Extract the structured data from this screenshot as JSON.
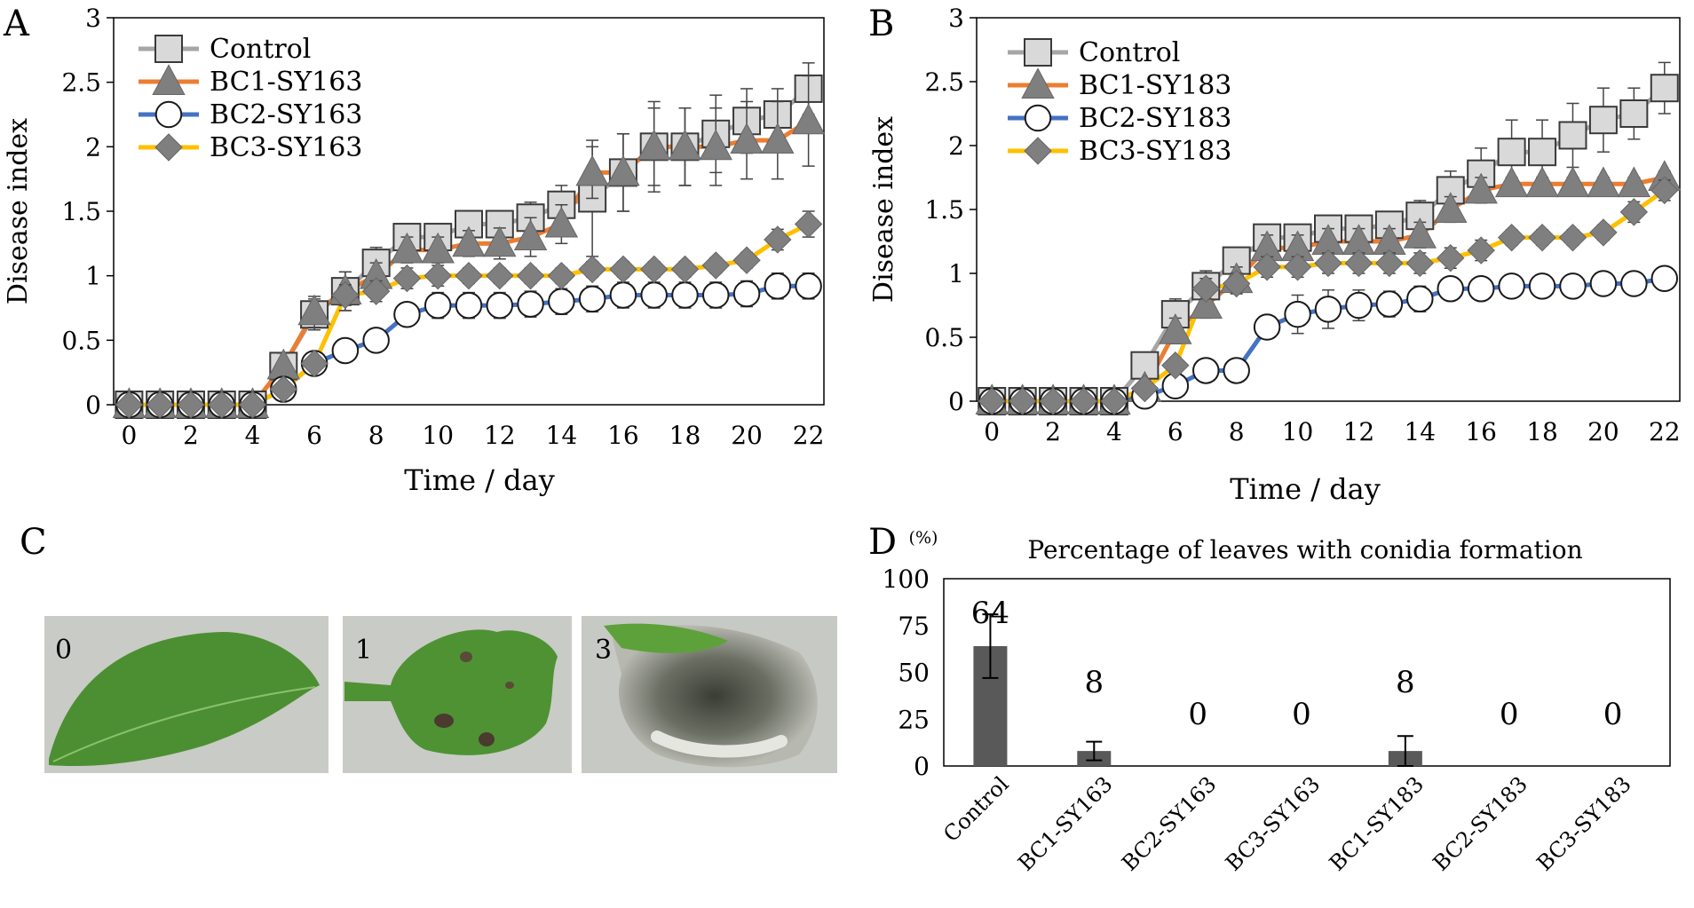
{
  "colors": {
    "control": "#a6a6a6",
    "bc1": "#ed7d31",
    "bc2": "#4472c4",
    "bc3": "#ffc000",
    "marker_fill": "#7f7f7f",
    "square_fill": "#d9d9d9",
    "bar_fill": "#595959",
    "leaf_bg": "#c7c9c4"
  },
  "chart_data": [
    {
      "panel": "A",
      "type": "line",
      "title": "",
      "xlabel": "Time / day",
      "ylabel": "Disease index",
      "xlim": [
        -0.5,
        22.5
      ],
      "ylim": [
        0,
        3
      ],
      "xticks": [
        0,
        2,
        4,
        6,
        8,
        10,
        12,
        14,
        16,
        18,
        20,
        22
      ],
      "xtick_labels": [
        "0",
        "2",
        "4",
        "6",
        "8",
        "10",
        "12",
        "14",
        "16",
        "18",
        "20",
        "22"
      ],
      "yticks": [
        0,
        0.5,
        1,
        1.5,
        2,
        2.5,
        3
      ],
      "ytick_labels": [
        "0",
        "0.5",
        "1",
        "1.5",
        "2",
        "2.5",
        "3"
      ],
      "legend_position": "top-left",
      "x": [
        0,
        1,
        2,
        3,
        4,
        5,
        6,
        7,
        8,
        9,
        10,
        11,
        12,
        13,
        14,
        15,
        16,
        17,
        18,
        19,
        20,
        21,
        22
      ],
      "series": [
        {
          "name": "Control",
          "key": "control",
          "marker": "square",
          "values": [
            0,
            0,
            0,
            0,
            0,
            0.3,
            0.7,
            0.88,
            1.1,
            1.3,
            1.3,
            1.4,
            1.4,
            1.45,
            1.55,
            1.6,
            1.8,
            2.0,
            2.0,
            2.1,
            2.2,
            2.25,
            2.45
          ],
          "errors": [
            0,
            0,
            0,
            0,
            0,
            0.1,
            0.12,
            0.15,
            0.12,
            0.08,
            0.08,
            0.1,
            0.1,
            0.12,
            0.15,
            0.45,
            0.3,
            0.35,
            0.3,
            0.3,
            0.25,
            0.2,
            0.2
          ]
        },
        {
          "name": "BC1-SY163",
          "key": "bc1",
          "marker": "triangle",
          "values": [
            0,
            0,
            0,
            0,
            0,
            0.3,
            0.72,
            0.88,
            1.0,
            1.2,
            1.2,
            1.25,
            1.25,
            1.3,
            1.4,
            1.8,
            1.8,
            2.0,
            2.0,
            2.0,
            2.05,
            2.05,
            2.2
          ],
          "errors": [
            0,
            0,
            0,
            0,
            0,
            0.1,
            0.12,
            0.15,
            0.1,
            0.1,
            0.1,
            0.1,
            0.12,
            0.15,
            0.15,
            0.2,
            0.3,
            0.3,
            0.3,
            0.3,
            0.3,
            0.3,
            0.35
          ]
        },
        {
          "name": "BC2-SY163",
          "key": "bc2",
          "marker": "circle",
          "values": [
            0,
            0,
            0,
            0,
            0,
            0.12,
            0.32,
            0.42,
            0.5,
            0.7,
            0.77,
            0.77,
            0.77,
            0.78,
            0.8,
            0.82,
            0.85,
            0.85,
            0.85,
            0.85,
            0.86,
            0.92,
            0.92
          ],
          "errors": [
            0,
            0,
            0,
            0,
            0,
            0.05,
            0.05,
            0.06,
            0.07,
            0.08,
            0.1,
            0.1,
            0.1,
            0.1,
            0.1,
            0.1,
            0.1,
            0.1,
            0.1,
            0.1,
            0.1,
            0.1,
            0.1
          ]
        },
        {
          "name": "BC3-SY163",
          "key": "bc3",
          "marker": "diamond",
          "values": [
            0,
            0,
            0,
            0,
            0,
            0.12,
            0.32,
            0.85,
            0.88,
            0.98,
            1.0,
            1.0,
            1.0,
            1.0,
            1.0,
            1.05,
            1.05,
            1.05,
            1.05,
            1.08,
            1.12,
            1.28,
            1.4
          ],
          "errors": [
            0,
            0,
            0,
            0,
            0,
            0.05,
            0.05,
            0.08,
            0.08,
            0.08,
            0.08,
            0.06,
            0.06,
            0.06,
            0.06,
            0.06,
            0.06,
            0.06,
            0.06,
            0.06,
            0.06,
            0.08,
            0.1
          ]
        }
      ]
    },
    {
      "panel": "B",
      "type": "line",
      "title": "",
      "xlabel": "Time / day",
      "ylabel": "Disease index",
      "xlim": [
        -0.5,
        22.5
      ],
      "ylim": [
        0,
        3
      ],
      "xticks": [
        0,
        2,
        4,
        6,
        8,
        10,
        12,
        14,
        16,
        18,
        20,
        22
      ],
      "xtick_labels": [
        "0",
        "2",
        "4",
        "6",
        "8",
        "10",
        "12",
        "14",
        "16",
        "18",
        "20",
        "22"
      ],
      "yticks": [
        0,
        0.5,
        1,
        1.5,
        2,
        2.5,
        3
      ],
      "ytick_labels": [
        "0",
        "0.5",
        "1",
        "1.5",
        "2",
        "2.5",
        "3"
      ],
      "legend_position": "top-left",
      "x": [
        0,
        1,
        2,
        3,
        4,
        5,
        6,
        7,
        8,
        9,
        10,
        11,
        12,
        13,
        14,
        15,
        16,
        17,
        18,
        19,
        20,
        21,
        22
      ],
      "series": [
        {
          "name": "Control",
          "key": "control",
          "marker": "square",
          "values": [
            0,
            0,
            0,
            0,
            0,
            0.28,
            0.68,
            0.9,
            1.1,
            1.28,
            1.28,
            1.35,
            1.35,
            1.38,
            1.45,
            1.65,
            1.78,
            1.95,
            1.95,
            2.08,
            2.2,
            2.25,
            2.45
          ],
          "errors": [
            0,
            0,
            0,
            0,
            0,
            0.1,
            0.12,
            0.12,
            0.1,
            0.08,
            0.1,
            0.1,
            0.1,
            0.1,
            0.12,
            0.15,
            0.2,
            0.25,
            0.25,
            0.25,
            0.25,
            0.2,
            0.2
          ]
        },
        {
          "name": "BC1-SY183",
          "key": "bc1",
          "marker": "triangle",
          "values": [
            0,
            0,
            0,
            0,
            0,
            0.1,
            0.55,
            0.75,
            0.95,
            1.2,
            1.2,
            1.25,
            1.25,
            1.25,
            1.3,
            1.5,
            1.65,
            1.7,
            1.7,
            1.7,
            1.7,
            1.7,
            1.75
          ],
          "errors": [
            0,
            0,
            0,
            0,
            0,
            0.05,
            0.1,
            0.1,
            0.1,
            0.1,
            0.1,
            0.1,
            0.1,
            0.1,
            0.1,
            0.1,
            0.1,
            0.05,
            0.05,
            0.05,
            0.05,
            0.05,
            0.05
          ]
        },
        {
          "name": "BC2-SY183",
          "key": "bc2",
          "marker": "circle",
          "values": [
            0,
            0,
            0,
            0,
            0,
            0.04,
            0.12,
            0.24,
            0.24,
            0.58,
            0.68,
            0.72,
            0.75,
            0.76,
            0.8,
            0.88,
            0.88,
            0.9,
            0.9,
            0.9,
            0.92,
            0.92,
            0.96
          ],
          "errors": [
            0,
            0,
            0,
            0,
            0,
            0.03,
            0.05,
            0.05,
            0.05,
            0.08,
            0.15,
            0.15,
            0.12,
            0.1,
            0.1,
            0.06,
            0.06,
            0.06,
            0.06,
            0.06,
            0.06,
            0.06,
            0.06
          ]
        },
        {
          "name": "BC3-SY183",
          "key": "bc3",
          "marker": "diamond",
          "values": [
            0,
            0,
            0,
            0,
            0,
            0.1,
            0.28,
            0.88,
            0.92,
            1.05,
            1.05,
            1.08,
            1.08,
            1.08,
            1.08,
            1.12,
            1.18,
            1.28,
            1.28,
            1.28,
            1.32,
            1.48,
            1.65
          ],
          "errors": [
            0,
            0,
            0,
            0,
            0,
            0.05,
            0.06,
            0.08,
            0.08,
            0.08,
            0.08,
            0.08,
            0.08,
            0.08,
            0.08,
            0.08,
            0.08,
            0.06,
            0.06,
            0.06,
            0.06,
            0.08,
            0.08
          ]
        }
      ]
    },
    {
      "panel": "D",
      "type": "bar",
      "title": "Percentage of leaves with  conidia formation",
      "ylabel_unit": "(%)",
      "xlabel": "",
      "ylim": [
        0,
        100
      ],
      "yticks": [
        0,
        25,
        50,
        75,
        100
      ],
      "ytick_labels": [
        "0",
        "25",
        "50",
        "75",
        "100"
      ],
      "categories": [
        "Control",
        "BC1-SY163",
        "BC2-SY163",
        "BC3-SY163",
        "BC1-SY183",
        "BC2-SY183",
        "BC3-SY183"
      ],
      "values": [
        64,
        8,
        0,
        0,
        8,
        0,
        0
      ],
      "errors": [
        17,
        5,
        0,
        0,
        8,
        0,
        0
      ],
      "data_labels": [
        "64",
        "8",
        "0",
        "0",
        "8",
        "0",
        "0"
      ]
    }
  ],
  "panel_labels": {
    "a": "A",
    "b": "B",
    "c": "C",
    "d": "D"
  },
  "photos": [
    {
      "label": "0"
    },
    {
      "label": "1"
    },
    {
      "label": "3"
    }
  ]
}
